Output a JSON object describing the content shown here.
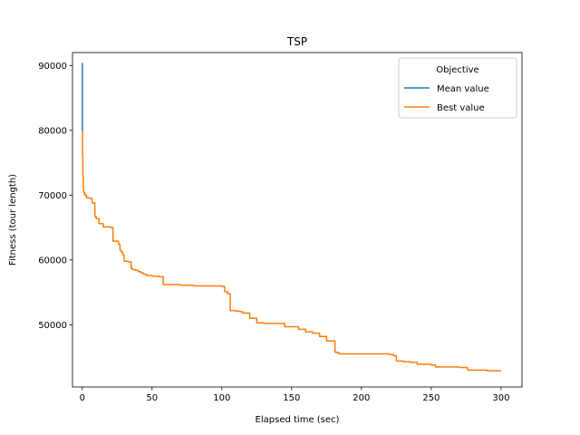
{
  "chart_data": {
    "type": "line",
    "title": "TSP",
    "xlabel": "Elapsed time (sec)",
    "ylabel": "Fitness (tour length)",
    "xlim": [
      -7,
      315
    ],
    "ylim": [
      40400,
      92000
    ],
    "xticks": [
      0,
      50,
      100,
      150,
      200,
      250,
      300
    ],
    "yticks": [
      50000,
      60000,
      70000,
      80000,
      90000
    ],
    "grid": false,
    "legend": {
      "title": "Objective",
      "placement": "top-right"
    },
    "series": [
      {
        "name": "Mean value",
        "color": "#1f77b4",
        "x": [
          0.1,
          0.1
        ],
        "y": [
          90400,
          79800
        ]
      },
      {
        "name": "Best value",
        "color": "#ff7f0e",
        "step": true,
        "x": [
          0.1,
          0.2,
          0.4,
          0.7,
          1,
          1.5,
          2,
          3,
          5,
          7,
          9,
          10,
          12,
          15,
          20,
          22,
          26,
          27,
          28,
          29,
          30,
          33,
          35,
          36,
          38,
          40,
          42,
          44,
          46,
          50,
          55,
          58,
          70,
          80,
          90,
          100,
          102,
          104,
          106,
          110,
          113,
          115,
          120,
          125,
          130,
          145,
          155,
          160,
          165,
          170,
          175,
          181,
          182,
          184,
          190,
          200,
          210,
          220,
          223,
          225,
          230,
          235,
          240,
          250,
          253,
          270,
          276,
          290,
          300
        ],
        "y": [
          79800,
          76000,
          73000,
          71200,
          70500,
          70200,
          70000,
          69600,
          69500,
          68800,
          66700,
          66400,
          65600,
          65100,
          65000,
          62900,
          62400,
          61500,
          61200,
          60800,
          59800,
          59700,
          58700,
          58500,
          58400,
          58200,
          58000,
          57800,
          57600,
          57500,
          57400,
          56200,
          56100,
          56000,
          56000,
          55900,
          55100,
          54800,
          52200,
          52100,
          52000,
          51800,
          51000,
          50300,
          50200,
          49700,
          49300,
          48900,
          48700,
          48200,
          47500,
          45800,
          45700,
          45500,
          45500,
          45500,
          45500,
          45400,
          45200,
          44400,
          44300,
          44200,
          43900,
          43800,
          43500,
          43400,
          43000,
          42900,
          42900
        ]
      }
    ]
  }
}
